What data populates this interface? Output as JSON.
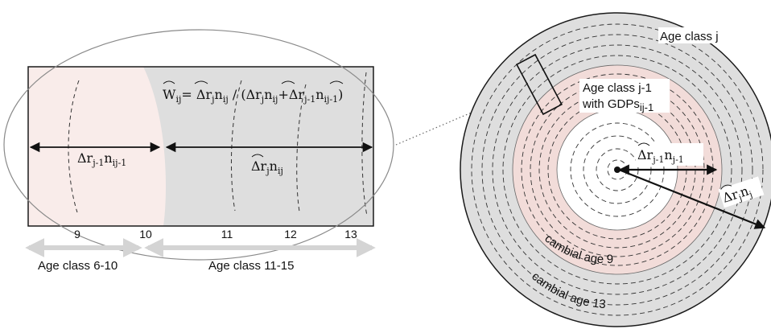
{
  "colors": {
    "gray_fill": "#dedede",
    "pink_fill": "#f9ecea",
    "pink_ring": "#f2dcd9",
    "outline": "#1a1a1a",
    "light_arrow": "#d4d4d4",
    "white": "#ffffff"
  },
  "left_panel": {
    "formula": {
      "w": "W",
      "w_sub": "ij",
      "eq": "= ",
      "t1": "Δr",
      "t1_j": "j",
      "t1_n": "n",
      "t1_ij": "ij",
      "slash": " / (",
      "t2": "Δr",
      "t2_j": "j",
      "t2_n": "n",
      "t2_ij": "ij",
      "plus": "+",
      "t3": "Δr",
      "t3_sub": "j-1",
      "t3_n": "n",
      "t3_sub2": "ij-1",
      "close": ")"
    },
    "label_prev": {
      "dr": "Δr",
      "sub1": "j-1",
      "n": "n",
      "sub2": "ij-1"
    },
    "label_curr": {
      "dr": "Δr",
      "sub1": "j",
      "n": "n",
      "sub2": "ij"
    },
    "ticks": [
      "9",
      "10",
      "11",
      "12",
      "13"
    ],
    "age_class_left": "Age class 6-10",
    "age_class_right": "Age class 11-15"
  },
  "right_panel": {
    "age_class_j": "Age class j",
    "age_class_prev_line1": "Age class j-1",
    "age_class_prev_line2": "with GDPs",
    "age_class_prev_sub": "ij-1",
    "inner_label": {
      "dr": "Δr",
      "sub1": "j-1",
      "n": "n",
      "sub2": "j-1"
    },
    "outer_label": {
      "dr": "Δr",
      "sub1": "j",
      "n": "n",
      "sub2": "j"
    },
    "cambial_age_9": "cambial age 9",
    "cambial_age_13": "cambial age 13"
  }
}
